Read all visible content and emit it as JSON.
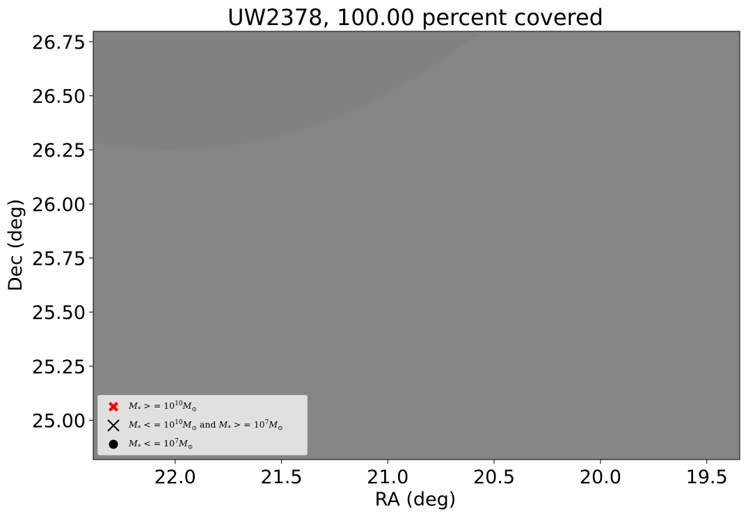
{
  "chart_data": {
    "type": "scatter",
    "title": "UW2378, 100.00 percent covered",
    "xlabel": "RA (deg)",
    "ylabel": "Dec (deg)",
    "xlim": [
      22.385,
      19.345
    ],
    "ylim": [
      24.818,
      26.798
    ],
    "x_ticks": [
      22.0,
      21.5,
      21.0,
      20.5,
      20.0,
      19.5
    ],
    "x_tick_labels": [
      "22.0",
      "21.5",
      "21.0",
      "20.5",
      "20.0",
      "19.5"
    ],
    "y_ticks": [
      25.0,
      25.25,
      25.5,
      25.75,
      26.0,
      26.25,
      26.5,
      26.75
    ],
    "y_tick_labels": [
      "25.00",
      "25.25",
      "25.50",
      "25.75",
      "26.00",
      "26.25",
      "26.50",
      "26.75"
    ],
    "x_axis_inverted": true,
    "grid": false,
    "background_color": "#828282",
    "coverage_overlay_color": "#858585",
    "legend_placement": "lower left",
    "series": [
      {
        "name": "M* >= 1e10 Msun",
        "marker": "filled-x",
        "color": "#ff0000",
        "points": []
      },
      {
        "name": "M* <= 1e10 Msun and M* >= 1e7 Msun",
        "marker": "x",
        "color": "#000000",
        "points": []
      },
      {
        "name": "M* <= 1e7 Msun",
        "marker": "circle",
        "color": "#000000",
        "points": []
      }
    ]
  },
  "legend": {
    "entries": [
      {
        "m": "M",
        "s": "*",
        "rel": " > = 10",
        "exp": "10",
        "mm": "M",
        "sun": "⊙",
        "tail": ""
      },
      {
        "m": "M",
        "s": "*",
        "rel": " < = 10",
        "exp": "10",
        "mm": "M",
        "sun": "⊙",
        "tail": "and"
      },
      {
        "m": "M",
        "s": "*",
        "rel": " < = 10",
        "exp": "7",
        "mm": "M",
        "sun": "⊙",
        "tail": ""
      }
    ],
    "entry2_second": {
      "rel": " > = 10",
      "exp": "7"
    }
  }
}
